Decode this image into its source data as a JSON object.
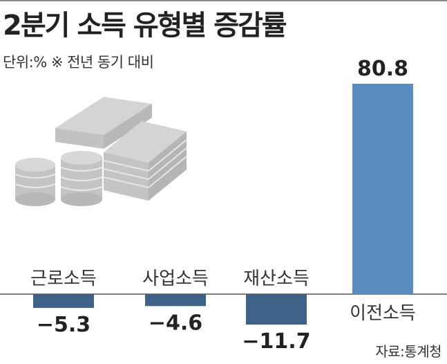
{
  "chart_data": {
    "type": "bar",
    "title": "2분기 소득 유형별 증감률",
    "subtitle": "단위:% ※ 전년 동기 대비",
    "categories": [
      "근로소득",
      "사업소득",
      "재산소득",
      "이전소득"
    ],
    "values": [
      -5.3,
      -4.6,
      -11.7,
      80.8
    ],
    "value_labels": [
      "−5.3",
      "−4.6",
      "−11.7",
      "80.8"
    ],
    "source": "자료:통계청",
    "grid": false,
    "legend": "none",
    "colors": {
      "positive": "#5b8cc0",
      "negative": "#3f6288",
      "baseline": "#555555",
      "icon_gray": "#c8c8c8",
      "icon_gray_dark": "#b0b0b0"
    },
    "icon": "money-stack-icon"
  }
}
